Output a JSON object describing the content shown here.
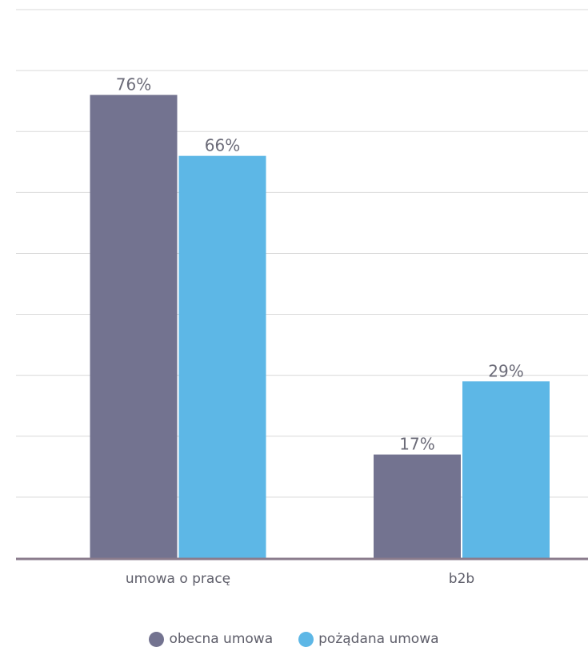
{
  "chart_data": {
    "type": "bar",
    "categories": [
      "umowa o pracę",
      "b2b"
    ],
    "series": [
      {
        "name": "obecna umowa",
        "values": [
          76,
          17
        ],
        "labels": [
          "76%",
          "17%"
        ],
        "color": "#737390"
      },
      {
        "name": "pożądana umowa",
        "values": [
          66,
          29
        ],
        "labels": [
          "66%",
          "29%"
        ],
        "color": "#5db7e6"
      }
    ],
    "ylim": [
      0,
      90
    ],
    "y_gridline_step": 10,
    "grid": true,
    "legend_position": "bottom",
    "colors": {
      "gridline": "#d9d9d9",
      "axis": "#8a7b8c"
    }
  }
}
